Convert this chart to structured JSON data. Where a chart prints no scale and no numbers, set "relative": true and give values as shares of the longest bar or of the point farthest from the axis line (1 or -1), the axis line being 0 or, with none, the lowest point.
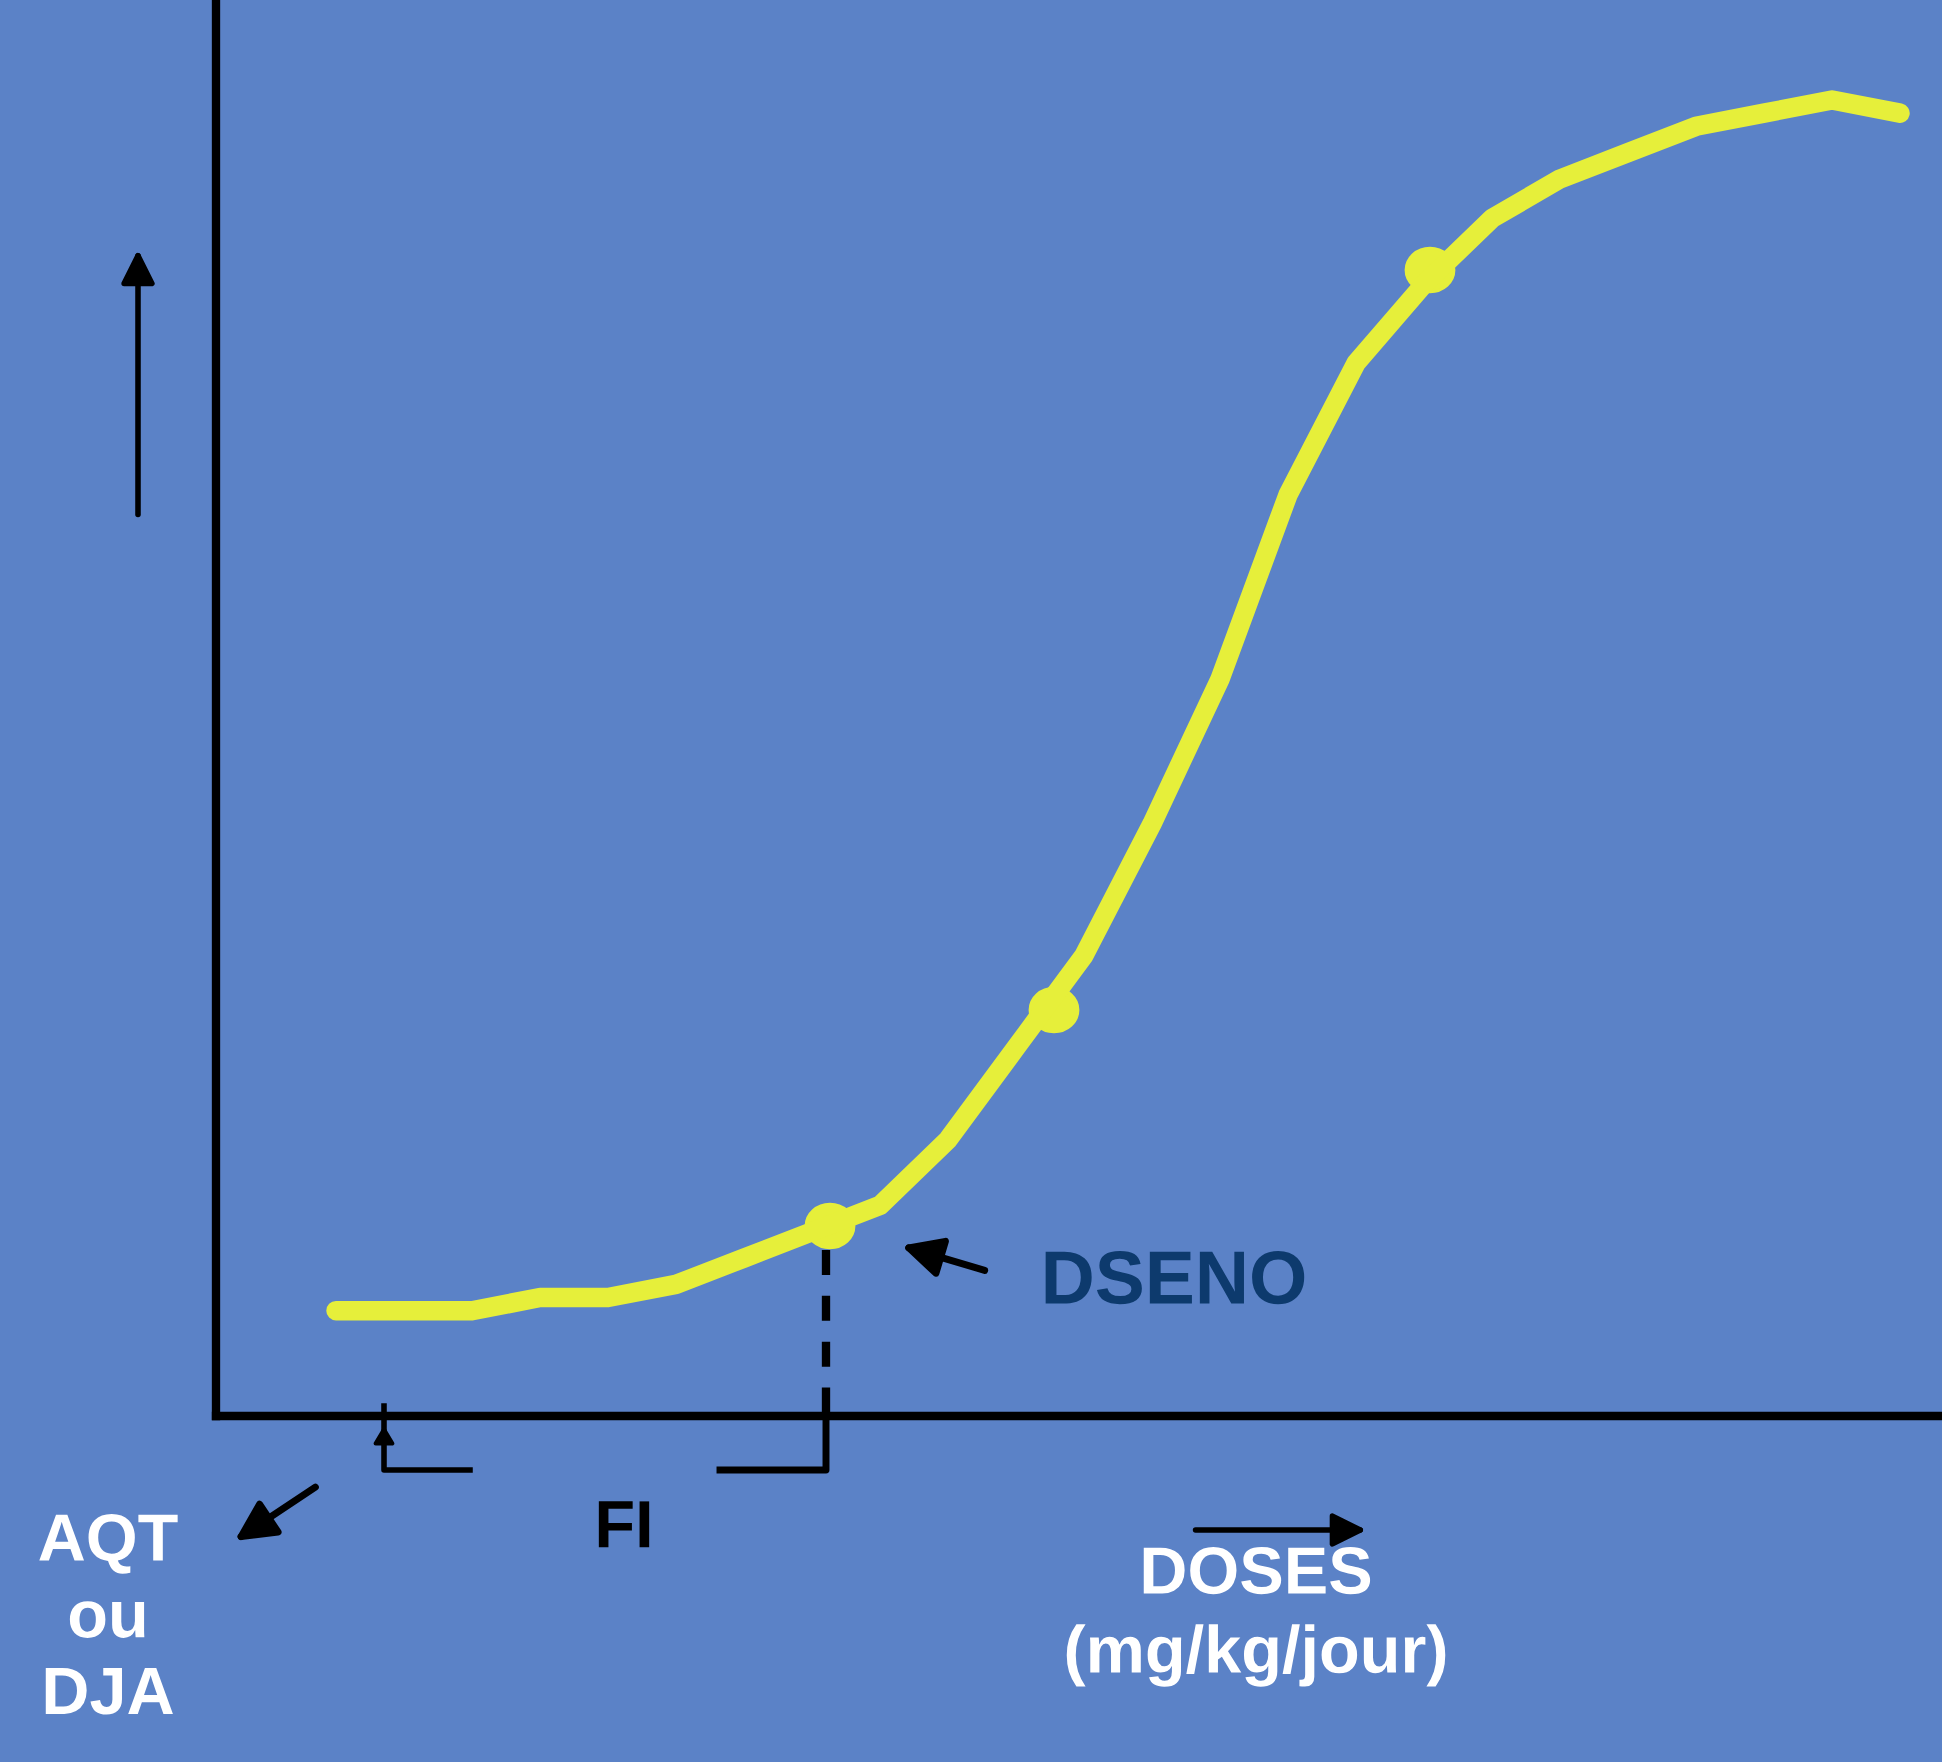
{
  "chart_data": {
    "type": "line",
    "relative": true,
    "xlabel": "DOSES\n(mg/kg/jour)",
    "categories": [
      null,
      null,
      null,
      null,
      null,
      null,
      null,
      null,
      null,
      null,
      null,
      null,
      null,
      null,
      null,
      null,
      null,
      null,
      null,
      null,
      null,
      null,
      null,
      null
    ],
    "series": [
      {
        "color": "#e6ef3a",
        "values": [
          0.08,
          0.08,
          0.08,
          0.09,
          0.09,
          0.1,
          0.12,
          0.14,
          0.16,
          0.21,
          0.28,
          0.35,
          0.45,
          0.56,
          0.7,
          0.8,
          0.86,
          0.91,
          0.94,
          0.96,
          0.98,
          0.99,
          1.0,
          0.99
        ]
      }
    ],
    "annotations": [
      "DSENO",
      "FI",
      "AQT\nou\nDJA"
    ],
    "legend": false
  }
}
